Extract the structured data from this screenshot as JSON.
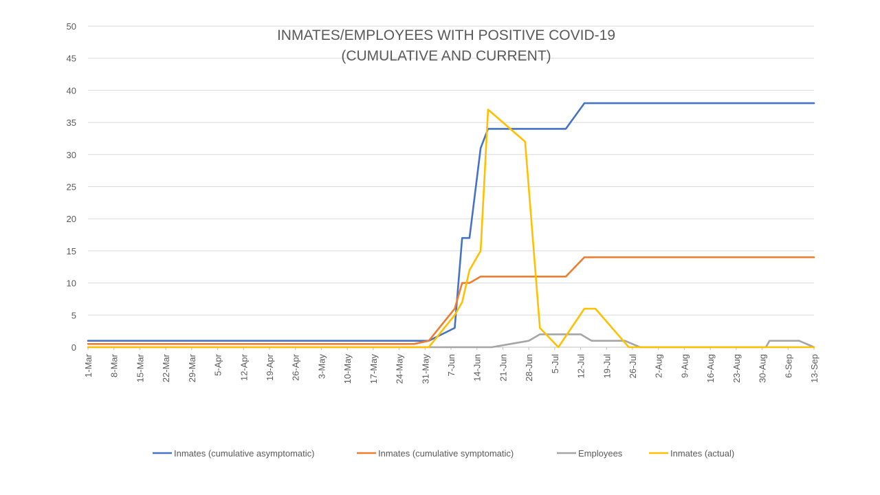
{
  "chart_data": {
    "type": "line",
    "title": "INMATES/EMPLOYEES WITH POSITIVE COVID-19",
    "subtitle": "(CUMULATIVE AND CURRENT)",
    "xlabel": "",
    "ylabel": "",
    "ylim": [
      0,
      50
    ],
    "yticks": [
      0,
      5,
      10,
      15,
      20,
      25,
      30,
      35,
      40,
      45,
      50
    ],
    "x_tick_labels": [
      "1-Mar",
      "8-Mar",
      "15-Mar",
      "22-Mar",
      "29-Mar",
      "5-Apr",
      "12-Apr",
      "19-Apr",
      "26-Apr",
      "3-May",
      "10-May",
      "17-May",
      "24-May",
      "31-May",
      "7-Jun",
      "14-Jun",
      "21-Jun",
      "28-Jun",
      "5-Jul",
      "12-Jul",
      "19-Jul",
      "26-Jul",
      "2-Aug",
      "9-Aug",
      "16-Aug",
      "23-Aug",
      "30-Aug",
      "6-Sep",
      "13-Sep"
    ],
    "x_range": [
      "2020-03-01",
      "2020-09-13"
    ],
    "grid": "horizontal",
    "legend_position": "bottom",
    "series": [
      {
        "name": "Inmates (cumulative asymptomatic)",
        "color": "#4472C4",
        "points": [
          [
            "2020-03-01",
            1
          ],
          [
            "2020-06-01",
            1
          ],
          [
            "2020-06-08",
            3
          ],
          [
            "2020-06-10",
            17
          ],
          [
            "2020-06-12",
            17
          ],
          [
            "2020-06-15",
            31
          ],
          [
            "2020-06-17",
            34
          ],
          [
            "2020-07-08",
            34
          ],
          [
            "2020-07-13",
            38
          ],
          [
            "2020-09-13",
            38
          ]
        ]
      },
      {
        "name": "Inmates (cumulative symptomatic)",
        "color": "#ED7D31",
        "points": [
          [
            "2020-03-01",
            0.5
          ],
          [
            "2020-05-28",
            0.5
          ],
          [
            "2020-06-01",
            1
          ],
          [
            "2020-06-08",
            6
          ],
          [
            "2020-06-10",
            10
          ],
          [
            "2020-06-12",
            10
          ],
          [
            "2020-06-15",
            11
          ],
          [
            "2020-07-08",
            11
          ],
          [
            "2020-07-13",
            14
          ],
          [
            "2020-09-13",
            14
          ]
        ]
      },
      {
        "name": "Employees",
        "color": "#A5A5A5",
        "points": [
          [
            "2020-03-01",
            0
          ],
          [
            "2020-06-18",
            0
          ],
          [
            "2020-06-28",
            1
          ],
          [
            "2020-07-01",
            2
          ],
          [
            "2020-07-12",
            2
          ],
          [
            "2020-07-15",
            1
          ],
          [
            "2020-07-24",
            1
          ],
          [
            "2020-07-28",
            0
          ],
          [
            "2020-08-31",
            0
          ],
          [
            "2020-09-01",
            1
          ],
          [
            "2020-09-09",
            1
          ],
          [
            "2020-09-13",
            0
          ]
        ]
      },
      {
        "name": "Inmates (actual)",
        "color": "#FFC000",
        "points": [
          [
            "2020-03-01",
            0
          ],
          [
            "2020-06-01",
            0
          ],
          [
            "2020-06-08",
            5
          ],
          [
            "2020-06-10",
            7
          ],
          [
            "2020-06-12",
            12
          ],
          [
            "2020-06-15",
            15
          ],
          [
            "2020-06-17",
            37
          ],
          [
            "2020-06-27",
            32
          ],
          [
            "2020-07-01",
            3
          ],
          [
            "2020-07-06",
            0
          ],
          [
            "2020-07-13",
            6
          ],
          [
            "2020-07-16",
            6
          ],
          [
            "2020-07-25",
            0
          ],
          [
            "2020-09-13",
            0
          ]
        ]
      }
    ]
  }
}
